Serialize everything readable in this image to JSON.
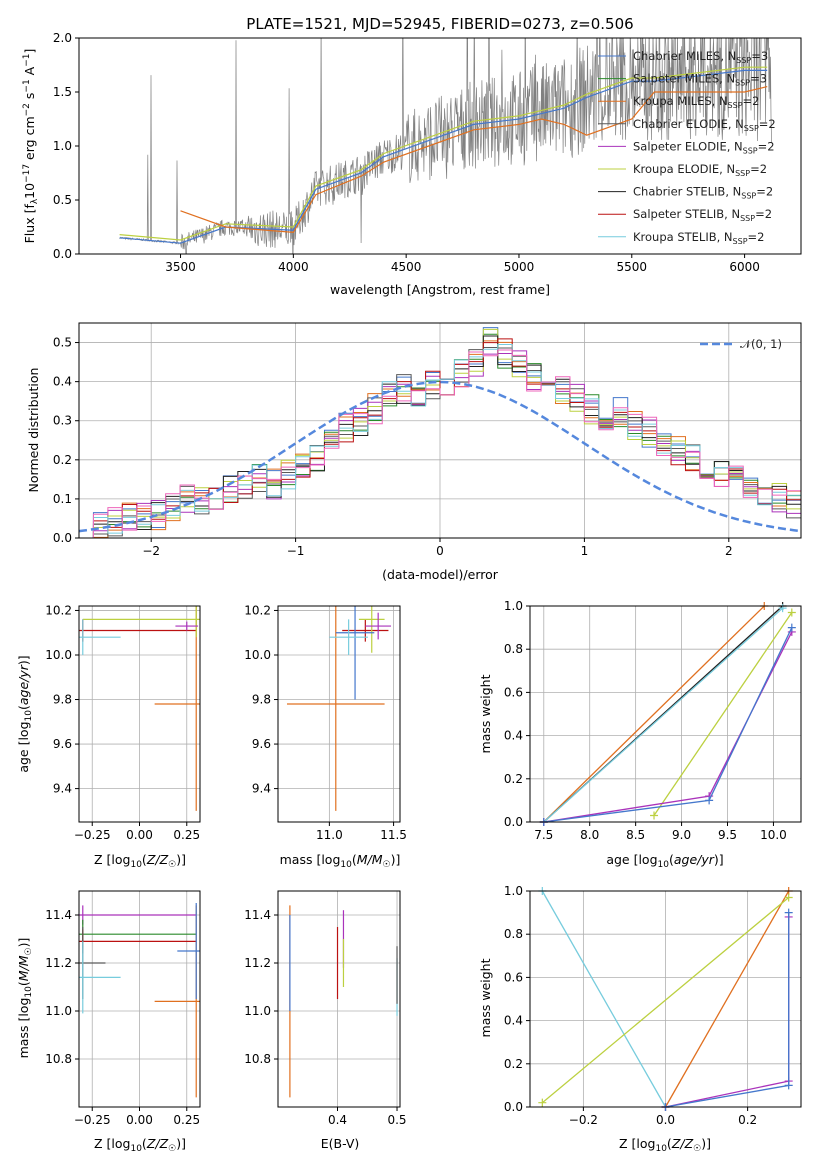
{
  "colors": {
    "Chabrier MILES": "#4477cc",
    "Salpeter MILES": "#2a8a2a",
    "Kroupa MILES": "#e07020",
    "Chabrier ELODIE": "#5a5a5a",
    "Salpeter ELODIE": "#aa33bb",
    "Kroupa ELODIE": "#bcd040",
    "Chabrier STELIB": "#222222",
    "Salpeter STELIB": "#bb1111",
    "Kroupa STELIB": "#77ccdd",
    "normal": "#5588dd",
    "extra_pink": "#ee66bb",
    "data": "#808080"
  },
  "chart_data": [
    {
      "type": "line",
      "title": "PLATE=1521, MJD=52945, FIBERID=0273, z=0.506",
      "xlabel": "wavelength [Angstrom, rest frame]",
      "ylabel": "Flux [f_λ 10^-17 erg cm^-2 s^-1 A^-1]",
      "xlim": [
        3050,
        6250
      ],
      "ylim": [
        0,
        2.0
      ],
      "xticks": [
        3500,
        4000,
        4500,
        5000,
        5500,
        6000
      ],
      "yticks": [
        0.0,
        0.5,
        1.0,
        1.5,
        2.0
      ],
      "legend_position": "top-right",
      "legend": [
        "Chabrier MILES, N_SSP=3",
        "Salpeter MILES, N_SSP=3",
        "Kroupa MILES, N_SSP=2",
        "Chabrier ELODIE, N_SSP=2",
        "Salpeter ELODIE, N_SSP=2",
        "Kroupa ELODIE, N_SSP=2",
        "Chabrier STELIB, N_SSP=2",
        "Salpeter STELIB, N_SSP=2",
        "Kroupa STELIB, N_SSP=2"
      ],
      "series": [
        {
          "name": "Chabrier MILES, N_SSP=3",
          "x": [
            3230,
            3500,
            3700,
            4000,
            4100,
            4300,
            4400,
            4600,
            4800,
            5000,
            5100,
            5200,
            5300,
            5500,
            5600,
            6000,
            6100
          ],
          "y": [
            0.15,
            0.1,
            0.25,
            0.22,
            0.6,
            0.75,
            0.9,
            1.05,
            1.2,
            1.25,
            1.3,
            1.35,
            1.45,
            1.6,
            1.6,
            1.7,
            1.7
          ]
        },
        {
          "name": "Kroupa MILES, N_SSP=2",
          "x": [
            3500,
            3700,
            4000,
            4100,
            4300,
            4400,
            4600,
            4800,
            5000,
            5100,
            5200,
            5300,
            5500,
            5600,
            6000,
            6100
          ],
          "y": [
            0.4,
            0.25,
            0.2,
            0.55,
            0.72,
            0.85,
            1.0,
            1.15,
            1.2,
            1.25,
            1.2,
            1.1,
            1.25,
            1.5,
            1.5,
            1.55
          ]
        }
      ]
    },
    {
      "type": "bar",
      "xlabel": "(data-model)/error",
      "ylabel": "Normed distribution",
      "xlim": [
        -2.5,
        2.5
      ],
      "ylim": [
        0,
        0.55
      ],
      "xticks": [
        -2,
        -1,
        0,
        1,
        2
      ],
      "yticks": [
        0.0,
        0.1,
        0.2,
        0.3,
        0.4,
        0.5
      ],
      "legend": [
        "𝒩(0, 1)"
      ],
      "legend_position": "top-right",
      "bin_width": 0.1,
      "bin_start": -2.5,
      "values": [
        0.02,
        0.03,
        0.04,
        0.05,
        0.05,
        0.06,
        0.08,
        0.1,
        0.09,
        0.1,
        0.12,
        0.14,
        0.15,
        0.14,
        0.16,
        0.18,
        0.21,
        0.24,
        0.28,
        0.3,
        0.33,
        0.36,
        0.38,
        0.37,
        0.39,
        0.4,
        0.42,
        0.45,
        0.5,
        0.47,
        0.44,
        0.41,
        0.4,
        0.38,
        0.36,
        0.33,
        0.3,
        0.32,
        0.29,
        0.27,
        0.25,
        0.22,
        0.2,
        0.18,
        0.17,
        0.15,
        0.13,
        0.12,
        0.1,
        0.09
      ]
    },
    {
      "type": "scatter",
      "xlabel": "Z [log10(Z/Z☉)]",
      "ylabel": "age  [log10(age/yr)]",
      "xlim": [
        -0.32,
        0.32
      ],
      "ylim": [
        9.25,
        10.22
      ],
      "xticks": [
        -0.25,
        0.0,
        0.25
      ],
      "xtick_labels": [
        "−0.25",
        "0.00",
        "0.25"
      ],
      "yticks": [
        9.4,
        9.6,
        9.8,
        10.0,
        10.2
      ],
      "points": [
        {
          "series": "Kroupa MILES",
          "x": 0.3,
          "y": 9.78,
          "ex": 0.22,
          "ey": 0.48
        },
        {
          "series": "Salpeter STELIB",
          "x": -0.3,
          "y": 10.11,
          "ex": 0.6,
          "ey": 0.05
        },
        {
          "series": "Kroupa ELODIE",
          "x": 0.3,
          "y": 10.16,
          "ex": 0.6,
          "ey": 0.08
        },
        {
          "series": "Kroupa STELIB",
          "x": -0.3,
          "y": 10.08,
          "ex": 0.2,
          "ey": 0.08
        },
        {
          "series": "Salpeter ELODIE",
          "x": 0.25,
          "y": 10.13,
          "ex": 0.06,
          "ey": 0.02
        }
      ]
    },
    {
      "type": "scatter",
      "xlabel": "mass [log10(M/M☉)]",
      "ylabel": "",
      "xlim": [
        10.6,
        11.55
      ],
      "ylim": [
        9.25,
        10.22
      ],
      "xticks": [
        11.0,
        11.5
      ],
      "xtick_labels": [
        "11.0",
        "11.5"
      ],
      "yticks": [
        9.4,
        9.6,
        9.8,
        10.0,
        10.2
      ],
      "points": [
        {
          "series": "Kroupa MILES",
          "x": 11.05,
          "y": 9.78,
          "ex": 0.38,
          "ey": 0.48
        },
        {
          "series": "Salpeter STELIB",
          "x": 11.28,
          "y": 10.11,
          "ex": 0.18,
          "ey": 0.05
        },
        {
          "series": "Kroupa ELODIE",
          "x": 11.33,
          "y": 10.16,
          "ex": 0.1,
          "ey": 0.15
        },
        {
          "series": "Chabrier MILES",
          "x": 11.2,
          "y": 10.1,
          "ex": 0.15,
          "ey": 0.3
        },
        {
          "series": "Kroupa STELIB",
          "x": 11.15,
          "y": 10.08,
          "ex": 0.15,
          "ey": 0.08
        },
        {
          "series": "Salpeter ELODIE",
          "x": 11.38,
          "y": 10.13,
          "ex": 0.1,
          "ey": 0.06
        }
      ]
    },
    {
      "type": "line",
      "xlabel": "age  [log10(age/yr)]",
      "ylabel": "mass weight",
      "xlim": [
        7.35,
        10.3
      ],
      "ylim": [
        0,
        1.0
      ],
      "xticks": [
        7.5,
        8.0,
        8.5,
        9.0,
        9.5,
        10.0
      ],
      "yticks": [
        0.0,
        0.2,
        0.4,
        0.6,
        0.8,
        1.0
      ],
      "series": [
        {
          "name": "Kroupa MILES",
          "x": [
            7.5,
            9.9
          ],
          "y": [
            0.0,
            1.0
          ]
        },
        {
          "name": "Chabrier STELIB",
          "x": [
            7.5,
            10.1
          ],
          "y": [
            0.0,
            1.0
          ]
        },
        {
          "name": "Kroupa STELIB",
          "x": [
            7.5,
            10.1
          ],
          "y": [
            0.0,
            0.99
          ]
        },
        {
          "name": "Kroupa ELODIE",
          "x": [
            8.7,
            10.2
          ],
          "y": [
            0.03,
            0.97
          ]
        },
        {
          "name": "Salpeter ELODIE",
          "x": [
            7.5,
            9.3,
            10.2
          ],
          "y": [
            0.0,
            0.12,
            0.88
          ]
        },
        {
          "name": "Chabrier MILES",
          "x": [
            7.5,
            9.3,
            10.2
          ],
          "y": [
            0.0,
            0.1,
            0.9
          ]
        }
      ]
    },
    {
      "type": "scatter",
      "xlabel": "Z [log10(Z/Z☉)]",
      "ylabel": "mass [log10(M/M☉)]",
      "xlim": [
        -0.32,
        0.32
      ],
      "ylim": [
        10.6,
        11.5
      ],
      "xticks": [
        -0.25,
        0.0,
        0.25
      ],
      "xtick_labels": [
        "−0.25",
        "0.00",
        "0.25"
      ],
      "yticks": [
        10.8,
        11.0,
        11.2,
        11.4
      ],
      "points": [
        {
          "series": "Kroupa MILES",
          "x": 0.3,
          "y": 11.04,
          "ex": 0.22,
          "ey": 0.4
        },
        {
          "series": "Salpeter ELODIE",
          "x": -0.3,
          "y": 11.4,
          "ex": 0.6,
          "ey": 0.04
        },
        {
          "series": "Salpeter MILES",
          "x": -0.3,
          "y": 11.32,
          "ex": 0.6,
          "ey": 0.06
        },
        {
          "series": "Salpeter STELIB",
          "x": -0.3,
          "y": 11.29,
          "ex": 0.6,
          "ey": 0.05
        },
        {
          "series": "Chabrier ELODIE",
          "x": -0.3,
          "y": 11.2,
          "ex": 0.12,
          "ey": 0.15
        },
        {
          "series": "Kroupa STELIB",
          "x": -0.3,
          "y": 11.14,
          "ex": 0.2,
          "ey": 0.15
        },
        {
          "series": "Chabrier MILES",
          "x": 0.3,
          "y": 11.25,
          "ex": 0.1,
          "ey": 0.2
        }
      ]
    },
    {
      "type": "scatter",
      "xlabel": "E(B-V)",
      "ylabel": "",
      "xlim": [
        0.3,
        0.505
      ],
      "ylim": [
        10.6,
        11.5
      ],
      "xticks": [
        0.4,
        0.5
      ],
      "xtick_labels": [
        "0.4",
        "0.5"
      ],
      "yticks": [
        10.8,
        11.0,
        11.2,
        11.4
      ],
      "points": [
        {
          "series": "Kroupa MILES",
          "x": 0.32,
          "y": 11.04,
          "ey": 0.4
        },
        {
          "series": "Salpeter STELIB",
          "x": 0.4,
          "y": 11.2,
          "ey": 0.15
        },
        {
          "series": "Salpeter ELODIE",
          "x": 0.41,
          "y": 11.3,
          "ey": 0.12
        },
        {
          "series": "Kroupa ELODIE",
          "x": 0.41,
          "y": 11.2,
          "ey": 0.1
        },
        {
          "series": "Kroupa STELIB",
          "x": 0.5,
          "y": 11.1,
          "ey": 0.12
        },
        {
          "series": "Chabrier ELODIE",
          "x": 0.5,
          "y": 11.15,
          "ey": 0.12
        },
        {
          "series": "Chabrier MILES",
          "x": 0.32,
          "y": 11.2,
          "ey": 0.2
        }
      ]
    },
    {
      "type": "line",
      "xlabel": "Z [log10(Z/Z☉)]",
      "ylabel": "mass weight",
      "xlim": [
        -0.33,
        0.33
      ],
      "ylim": [
        0,
        1.0
      ],
      "xticks": [
        -0.2,
        0.0,
        0.2
      ],
      "xtick_labels": [
        "−0.2",
        "0.0",
        "0.2"
      ],
      "yticks": [
        0.0,
        0.2,
        0.4,
        0.6,
        0.8,
        1.0
      ],
      "series": [
        {
          "name": "Kroupa STELIB",
          "x": [
            -0.3,
            0.0
          ],
          "y": [
            1.0,
            0.0
          ]
        },
        {
          "name": "Kroupa MILES",
          "x": [
            0.0,
            0.3
          ],
          "y": [
            0.0,
            1.0
          ]
        },
        {
          "name": "Kroupa ELODIE",
          "x": [
            -0.3,
            0.3
          ],
          "y": [
            0.02,
            0.97
          ]
        },
        {
          "name": "Salpeter ELODIE",
          "x": [
            0.0,
            0.3,
            0.3
          ],
          "y": [
            0.0,
            0.12,
            0.88
          ]
        },
        {
          "name": "Chabrier MILES",
          "x": [
            0.0,
            0.3,
            0.3
          ],
          "y": [
            0.0,
            0.1,
            0.9
          ]
        }
      ]
    }
  ]
}
